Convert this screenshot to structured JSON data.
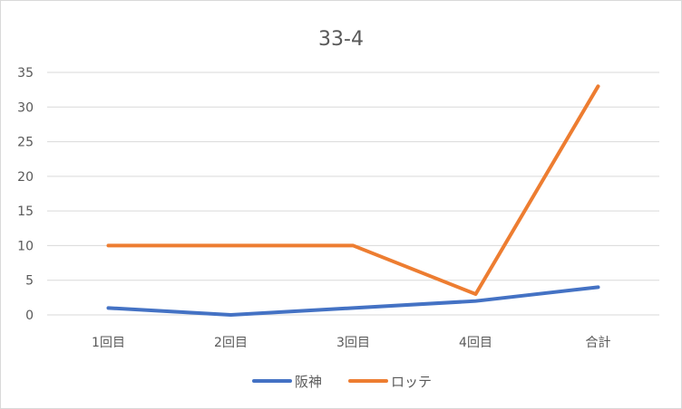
{
  "chart_data": {
    "type": "line",
    "title": "33-4",
    "categories": [
      "1回目",
      "2回目",
      "3回目",
      "4回目",
      "合計"
    ],
    "series": [
      {
        "name": "阪神",
        "values": [
          1,
          0,
          1,
          2,
          4
        ],
        "color": "#4472c4"
      },
      {
        "name": "ロッテ",
        "values": [
          10,
          10,
          10,
          3,
          33
        ],
        "color": "#ed7d31"
      }
    ],
    "ylim": [
      0,
      35
    ],
    "yticks": [
      0,
      5,
      10,
      15,
      20,
      25,
      30,
      35
    ],
    "grid": true,
    "legend": "bottom"
  }
}
